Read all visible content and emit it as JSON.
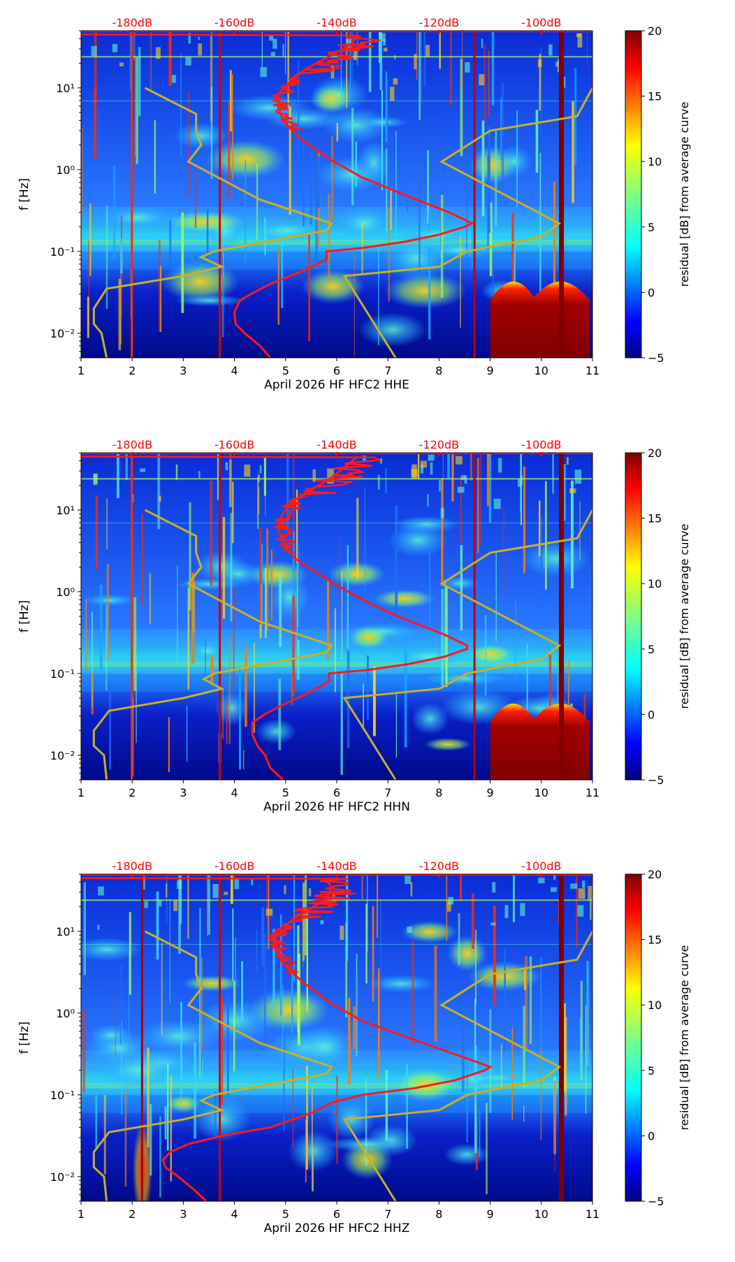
{
  "colors": {
    "overlay_curve": "#ff1a1a",
    "model_curve": "#c8b025",
    "top_axis_labels": "#ff0000",
    "axis": "#000000"
  },
  "chart_data": [
    {
      "type": "heatmap",
      "channel": "HHE",
      "xlabel": "April 2026 HF HFC2  HHE",
      "ylabel": "f [Hz]",
      "xlim": [
        1,
        11
      ],
      "xticks": [
        1,
        2,
        3,
        4,
        5,
        6,
        7,
        8,
        9,
        10,
        11
      ],
      "xtick_labels": [
        "1",
        "2",
        "3",
        "4",
        "5",
        "6",
        "7",
        "8",
        "9",
        "10",
        "11"
      ],
      "y_scale": "log",
      "ylim": [
        0.005,
        50
      ],
      "yticks": [
        0.01,
        0.1,
        1,
        10
      ],
      "ytick_labels": [
        "10⁻²",
        "10⁻¹",
        "10⁰",
        "10¹"
      ],
      "top_axis_labels": [
        "-180dB",
        "-160dB",
        "-140dB",
        "-120dB",
        "-100dB"
      ],
      "top_axis_positions": [
        2,
        4,
        6,
        8,
        10
      ],
      "colorbar": {
        "label": "residual [dB] from average curve",
        "min": -5,
        "max": 20,
        "ticks": [
          -5,
          0,
          5,
          10,
          15,
          20
        ],
        "tick_labels": [
          "−5",
          "0",
          "5",
          "10",
          "15",
          "20"
        ],
        "colormap": "jet"
      },
      "red_curve": {
        "x": [
          4.7,
          4.5,
          4.2,
          4.02,
          4.0,
          4.1,
          4.4,
          4.7,
          5.4,
          5.8,
          5.8,
          6.5,
          7.3,
          8.0,
          8.5,
          8.65,
          8.2,
          7.3,
          6.5,
          5.9,
          5.25,
          4.95,
          4.85,
          4.85,
          4.95,
          5.1,
          5.2,
          5.4,
          5.6,
          5.9,
          6.3,
          6.4
        ],
        "y": [
          0.005,
          0.007,
          0.01,
          0.013,
          0.018,
          0.025,
          0.032,
          0.04,
          0.06,
          0.08,
          0.1,
          0.11,
          0.13,
          0.16,
          0.2,
          0.22,
          0.3,
          0.5,
          0.8,
          1.3,
          2.5,
          4,
          6,
          8,
          10,
          12,
          14,
          17,
          20,
          25,
          35,
          45
        ]
      },
      "yellow_curve_left": {
        "x": [
          1.5,
          1.4,
          1.25,
          1.25,
          1.5,
          3.0,
          3.75,
          3.35,
          3.6,
          5.8,
          5.9,
          4.5,
          3.1,
          3.35,
          3.25,
          3.25,
          2.25
        ],
        "y": [
          0.005,
          0.01,
          0.013,
          0.02,
          0.035,
          0.05,
          0.065,
          0.085,
          0.1,
          0.18,
          0.22,
          0.43,
          1.25,
          2.0,
          3.0,
          4.8,
          10
        ]
      },
      "yellow_curve_right": {
        "x": [
          7.15,
          6.15,
          8.0,
          8.55,
          10.0,
          10.35,
          8.05,
          9.0,
          10.7,
          11.0
        ],
        "y": [
          0.005,
          0.05,
          0.065,
          0.1,
          0.15,
          0.22,
          1.25,
          3.0,
          4.5,
          10
        ]
      },
      "vertical_lines": [
        {
          "x": 2.0,
          "color": "#ff2a00"
        },
        {
          "x": 3.72,
          "color": "#d40000"
        },
        {
          "x": 8.7,
          "color": "#c00000"
        },
        {
          "x": 10.4,
          "color": "#7f0000"
        }
      ]
    },
    {
      "type": "heatmap",
      "channel": "HHN",
      "xlabel": "April 2026 HF HFC2  HHN",
      "ylabel": "f [Hz]",
      "xlim": [
        1,
        11
      ],
      "xticks": [
        1,
        2,
        3,
        4,
        5,
        6,
        7,
        8,
        9,
        10,
        11
      ],
      "xtick_labels": [
        "1",
        "2",
        "3",
        "4",
        "5",
        "6",
        "7",
        "8",
        "9",
        "10",
        "11"
      ],
      "y_scale": "log",
      "ylim": [
        0.005,
        50
      ],
      "yticks": [
        0.01,
        0.1,
        1,
        10
      ],
      "ytick_labels": [
        "10⁻²",
        "10⁻¹",
        "10⁰",
        "10¹"
      ],
      "top_axis_labels": [
        "-180dB",
        "-160dB",
        "-140dB",
        "-120dB",
        "-100dB"
      ],
      "top_axis_positions": [
        2,
        4,
        6,
        8,
        10
      ],
      "colorbar": {
        "label": "residual [dB] from average curve",
        "min": -5,
        "max": 20,
        "ticks": [
          -5,
          0,
          5,
          10,
          15,
          20
        ],
        "tick_labels": [
          "−5",
          "0",
          "5",
          "10",
          "15",
          "20"
        ],
        "colormap": "jet"
      },
      "red_curve": {
        "x": [
          4.95,
          4.7,
          4.6,
          4.45,
          4.35,
          4.35,
          4.6,
          4.9,
          5.5,
          5.85,
          5.85,
          6.6,
          7.4,
          8.1,
          8.55,
          8.55,
          8.1,
          7.2,
          6.5,
          5.9,
          5.2,
          4.95,
          4.85,
          4.9,
          5.0,
          5.1,
          5.25,
          5.45,
          5.65,
          5.9,
          6.2,
          6.4
        ],
        "y": [
          0.005,
          0.007,
          0.01,
          0.013,
          0.018,
          0.025,
          0.032,
          0.04,
          0.06,
          0.08,
          0.1,
          0.11,
          0.13,
          0.16,
          0.2,
          0.22,
          0.3,
          0.5,
          0.8,
          1.3,
          2.5,
          4,
          6,
          8,
          10,
          12,
          14,
          17,
          20,
          25,
          35,
          45
        ]
      },
      "yellow_curve_left": {
        "x": [
          1.5,
          1.45,
          1.25,
          1.25,
          1.55,
          3.0,
          3.75,
          3.4,
          3.6,
          5.8,
          5.9,
          4.5,
          3.1,
          3.35,
          3.25,
          3.25,
          2.25
        ],
        "y": [
          0.005,
          0.01,
          0.013,
          0.02,
          0.035,
          0.05,
          0.065,
          0.085,
          0.1,
          0.18,
          0.22,
          0.43,
          1.25,
          2.0,
          3.0,
          4.8,
          10
        ]
      },
      "yellow_curve_right": {
        "x": [
          7.15,
          6.15,
          8.0,
          8.55,
          10.0,
          10.35,
          8.05,
          9.0,
          10.7,
          11.0
        ],
        "y": [
          0.005,
          0.05,
          0.065,
          0.1,
          0.15,
          0.22,
          1.25,
          3.0,
          4.5,
          10
        ]
      },
      "vertical_lines": [
        {
          "x": 2.0,
          "color": "#ff2a00"
        },
        {
          "x": 3.72,
          "color": "#d40000"
        },
        {
          "x": 8.7,
          "color": "#c00000"
        },
        {
          "x": 10.4,
          "color": "#7f0000"
        }
      ]
    },
    {
      "type": "heatmap",
      "channel": "HHZ",
      "xlabel": "April 2026 HF HFC2  HHZ",
      "ylabel": "f [Hz]",
      "xlim": [
        1,
        11
      ],
      "xticks": [
        1,
        2,
        3,
        4,
        5,
        6,
        7,
        8,
        9,
        10,
        11
      ],
      "xtick_labels": [
        "1",
        "2",
        "3",
        "4",
        "5",
        "6",
        "7",
        "8",
        "9",
        "10",
        "11"
      ],
      "y_scale": "log",
      "ylim": [
        0.005,
        50
      ],
      "yticks": [
        0.01,
        0.1,
        1,
        10
      ],
      "ytick_labels": [
        "10⁻²",
        "10⁻¹",
        "10⁰",
        "10¹"
      ],
      "top_axis_labels": [
        "-180dB",
        "-160dB",
        "-140dB",
        "-120dB",
        "-100dB"
      ],
      "top_axis_positions": [
        2,
        4,
        6,
        8,
        10
      ],
      "colorbar": {
        "label": "residual [dB] from average curve",
        "min": -5,
        "max": 20,
        "ticks": [
          -5,
          0,
          5,
          10,
          15,
          20
        ],
        "tick_labels": [
          "−5",
          "0",
          "5",
          "10",
          "15",
          "20"
        ],
        "colormap": "jet"
      },
      "red_curve": {
        "x": [
          3.45,
          3.2,
          2.9,
          2.65,
          2.6,
          2.75,
          3.1,
          3.8,
          4.7,
          5.5,
          5.9,
          6.5,
          7.5,
          8.3,
          8.9,
          9.0,
          8.4,
          7.4,
          6.5,
          5.9,
          5.3,
          4.95,
          4.8,
          4.75,
          4.8,
          5.0,
          5.15,
          5.35,
          5.55,
          5.8,
          5.9,
          5.75
        ],
        "y": [
          0.005,
          0.007,
          0.01,
          0.013,
          0.016,
          0.02,
          0.025,
          0.032,
          0.04,
          0.06,
          0.08,
          0.1,
          0.12,
          0.15,
          0.2,
          0.22,
          0.3,
          0.5,
          0.8,
          1.3,
          2.5,
          4,
          6,
          8,
          10,
          12,
          14,
          17,
          20,
          25,
          35,
          45
        ]
      },
      "yellow_curve_left": {
        "x": [
          1.5,
          1.45,
          1.25,
          1.25,
          1.55,
          3.0,
          3.75,
          3.35,
          3.6,
          5.8,
          5.9,
          4.5,
          3.1,
          3.35,
          3.25,
          3.25,
          2.25
        ],
        "y": [
          0.005,
          0.01,
          0.013,
          0.02,
          0.035,
          0.05,
          0.065,
          0.085,
          0.1,
          0.18,
          0.22,
          0.43,
          1.25,
          2.0,
          3.0,
          4.8,
          10
        ]
      },
      "yellow_curve_right": {
        "x": [
          7.15,
          6.15,
          8.0,
          8.55,
          10.0,
          10.35,
          8.05,
          9.0,
          10.7,
          11.0
        ],
        "y": [
          0.005,
          0.05,
          0.065,
          0.1,
          0.15,
          0.22,
          1.25,
          3.0,
          4.5,
          10
        ]
      },
      "vertical_lines": [
        {
          "x": 2.2,
          "color": "#b00000"
        },
        {
          "x": 3.72,
          "color": "#d40000"
        },
        {
          "x": 10.4,
          "color": "#7f0000"
        }
      ]
    }
  ]
}
